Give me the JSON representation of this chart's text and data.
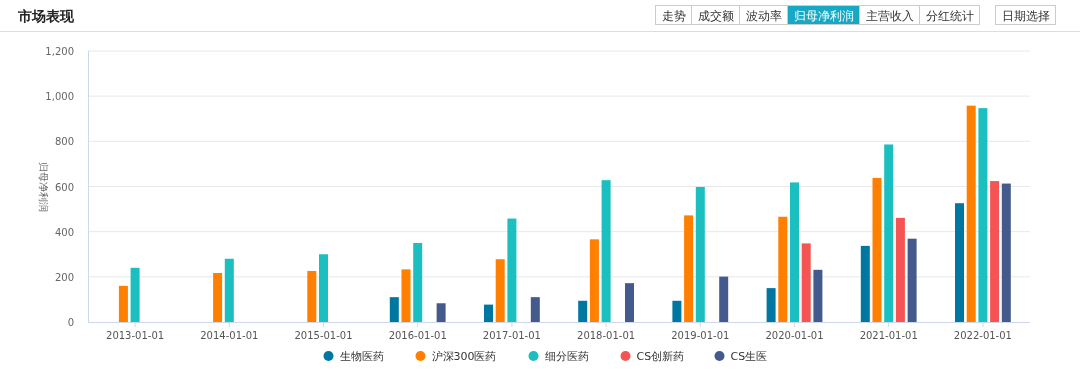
{
  "chart_data": {
    "type": "bar",
    "title": "市场表现",
    "annotations": [
      "走势",
      "成交额",
      "波动率",
      "归母净利润",
      "主营收入",
      "分红统计",
      "日期选择"
    ],
    "ylabel": "归母净利润",
    "categories": [
      "2013-01-01",
      "2014-01-01",
      "2015-01-01",
      "2016-01-01",
      "2017-01-01",
      "2018-01-01",
      "2019-01-01",
      "2020-01-01",
      "2021-01-01",
      "2022-01-01"
    ],
    "series": [
      {
        "name": "生物医药",
        "color": "#0077a0",
        "values": [
          null,
          null,
          null,
          110,
          77,
          94,
          94,
          150,
          337,
          526
        ]
      },
      {
        "name": "沪深300医药",
        "color": "#ff7f00",
        "values": [
          160,
          217,
          226,
          233,
          278,
          366,
          472,
          466,
          638,
          958
        ]
      },
      {
        "name": "细分医药",
        "color": "#1bbfbf",
        "values": [
          240,
          280,
          300,
          350,
          458,
          628,
          598,
          618,
          786,
          947
        ]
      },
      {
        "name": "CS创新药",
        "color": "#f45454",
        "values": [
          null,
          null,
          null,
          null,
          null,
          null,
          null,
          348,
          461,
          624
        ]
      },
      {
        "name": "CS生医",
        "color": "#455a8c",
        "values": [
          null,
          null,
          null,
          83,
          110,
          172,
          201,
          231,
          369,
          613
        ]
      }
    ],
    "ylim": [
      0,
      1200
    ],
    "yticks": [
      0,
      200,
      400,
      600,
      800,
      {
        "value": 1000,
        "label": "1,000"
      },
      {
        "value": 1200,
        "label": "1,200"
      }
    ],
    "grid": "y",
    "legend": "bottom"
  }
}
